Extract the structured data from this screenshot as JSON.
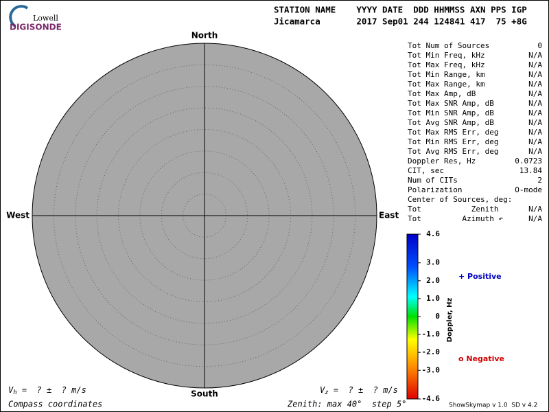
{
  "logo": {
    "top": "Lowell",
    "bottom": "DIGISONDE"
  },
  "header": {
    "columns": "STATION NAME    YYYY DATE  DDD HHMMSS AXN PPS IGP",
    "values": "Jicamarca       2017 Sep01 244 124841 417  75 +8G"
  },
  "skymap": {
    "north": "North",
    "south": "South",
    "east": "East",
    "west": "West"
  },
  "stats": [
    {
      "label": "Tot Num of Sources",
      "value": "0",
      "muted": true
    },
    {
      "label": "Tot Min Freq, kHz",
      "value": "N/A",
      "muted": true
    },
    {
      "label": "Tot Max Freq, kHz",
      "value": "N/A",
      "muted": true
    },
    {
      "label": "Tot Min Range, km",
      "value": "N/A",
      "muted": true
    },
    {
      "label": "Tot Max Range, km",
      "value": "N/A",
      "muted": true
    },
    {
      "label": "Tot Max Amp, dB",
      "value": "N/A",
      "muted": true
    },
    {
      "label": "Tot Max SNR Amp, dB",
      "value": "N/A",
      "muted": true
    },
    {
      "label": "Tot Min SNR Amp, dB",
      "value": "N/A",
      "muted": true
    },
    {
      "label": "Tot Avg SNR Amp, dB",
      "value": "N/A",
      "muted": true
    },
    {
      "label": "Tot Max RMS Err, deg",
      "value": "N/A",
      "muted": true
    },
    {
      "label": "Tot Min RMS Err, deg",
      "value": "N/A",
      "muted": true
    },
    {
      "label": "Tot Avg RMS Err, deg",
      "value": "N/A",
      "muted": true
    },
    {
      "label": "Doppler Res, Hz",
      "value": "0.0723",
      "muted": false
    },
    {
      "label": "CIT, sec",
      "value": "13.84",
      "muted": false
    },
    {
      "label": "Num of CITs",
      "value": "2",
      "muted": false
    },
    {
      "label": "Polarization",
      "value": "O-mode",
      "muted": false
    },
    {
      "label": "Center of Sources, deg:"
    },
    {
      "label": "Tot           Zenith",
      "value": "N/A",
      "muted": true
    },
    {
      "label": "Tot         Azimuth ↶",
      "value": "N/A",
      "muted": true
    }
  ],
  "colorbar": {
    "label": "Doppler, Hz",
    "lim": [
      -4.6,
      4.6
    ],
    "ticks": [
      4.6,
      {
        "value": 3,
        "label": "3.0"
      },
      {
        "value": 2,
        "label": "2.0"
      },
      {
        "value": 1,
        "label": "1.0"
      },
      0,
      {
        "value": -1,
        "label": "-1.0"
      },
      {
        "value": -2,
        "label": "-2.0"
      },
      {
        "value": -3,
        "label": "-3.0"
      },
      -4.6
    ]
  },
  "legend": {
    "positive": "+ Positive",
    "negative": "o Negative"
  },
  "velocity": {
    "vh_symbol": "V",
    "vh_sub": "h",
    "vh_text": " =  ? ±  ? m/s",
    "vz_symbol": "V",
    "vz_sub": "z",
    "vz_text": " =  ? ±  ? m/s"
  },
  "footer": {
    "left": "Compass coordinates",
    "middle": "Zenith: max 40°  step 5°",
    "right": "ShowSkymap v 1.0  SD v 4.2"
  }
}
